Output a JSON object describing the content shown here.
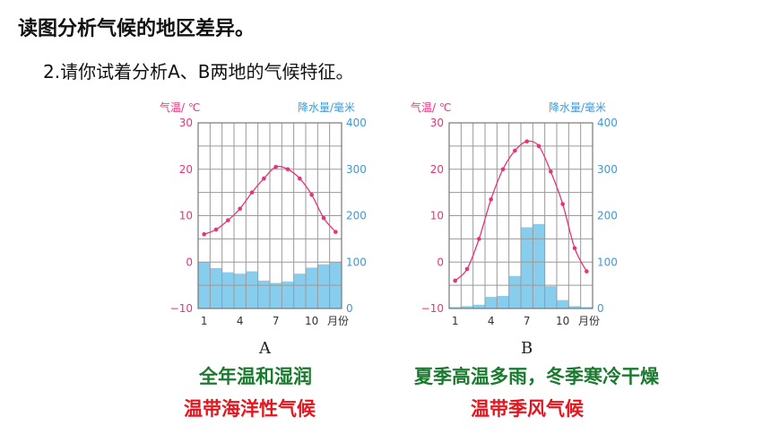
{
  "heading": "读图分析气候的地区差异。",
  "question": "2.请你试着分析A、B两地的气候特征。",
  "axis_left_label": "气温/ ℃",
  "axis_right_label": "降水量/毫米",
  "x_unit_label": "月份",
  "colors": {
    "temp_line": "#e8337a",
    "precip_bar": "#87cdee",
    "grid": "#9a9a9a",
    "left_axis_text": "#e8337a",
    "right_axis_text": "#3a9bd9"
  },
  "answers": {
    "A": {
      "feature": "全年温和湿润",
      "climate": "温带海洋性气候"
    },
    "B": {
      "feature": "夏季高温多雨，冬季寒冷干燥",
      "climate": "温带季风气候"
    }
  },
  "chart_data": [
    {
      "type": "line+bar",
      "name": "A",
      "x": [
        1,
        2,
        3,
        4,
        5,
        6,
        7,
        8,
        9,
        10,
        11,
        12
      ],
      "xticks": [
        1,
        4,
        7,
        10
      ],
      "temperature_c": [
        6,
        7,
        9,
        11.5,
        15,
        18,
        20.5,
        20,
        18,
        14.5,
        9.5,
        6.5
      ],
      "precipitation_mm": [
        100,
        87,
        78,
        75,
        80,
        60,
        55,
        58,
        75,
        88,
        95,
        100
      ],
      "temp_ylim": [
        -10,
        30
      ],
      "temp_yticks": [
        -10,
        0,
        10,
        20,
        30
      ],
      "precip_ylim": [
        0,
        400
      ],
      "precip_yticks": [
        0,
        100,
        200,
        300,
        400
      ]
    },
    {
      "type": "line+bar",
      "name": "B",
      "x": [
        1,
        2,
        3,
        4,
        5,
        6,
        7,
        8,
        9,
        10,
        11,
        12
      ],
      "xticks": [
        1,
        4,
        7,
        10
      ],
      "temperature_c": [
        -4,
        -1.5,
        5,
        13.5,
        20,
        24,
        26,
        25,
        19.5,
        12.5,
        3,
        -2
      ],
      "precipitation_mm": [
        3,
        5,
        8,
        25,
        27,
        70,
        175,
        182,
        48,
        18,
        5,
        3
      ],
      "temp_ylim": [
        -10,
        30
      ],
      "temp_yticks": [
        -10,
        0,
        10,
        20,
        30
      ],
      "precip_ylim": [
        0,
        400
      ],
      "precip_yticks": [
        0,
        100,
        200,
        300,
        400
      ]
    }
  ]
}
